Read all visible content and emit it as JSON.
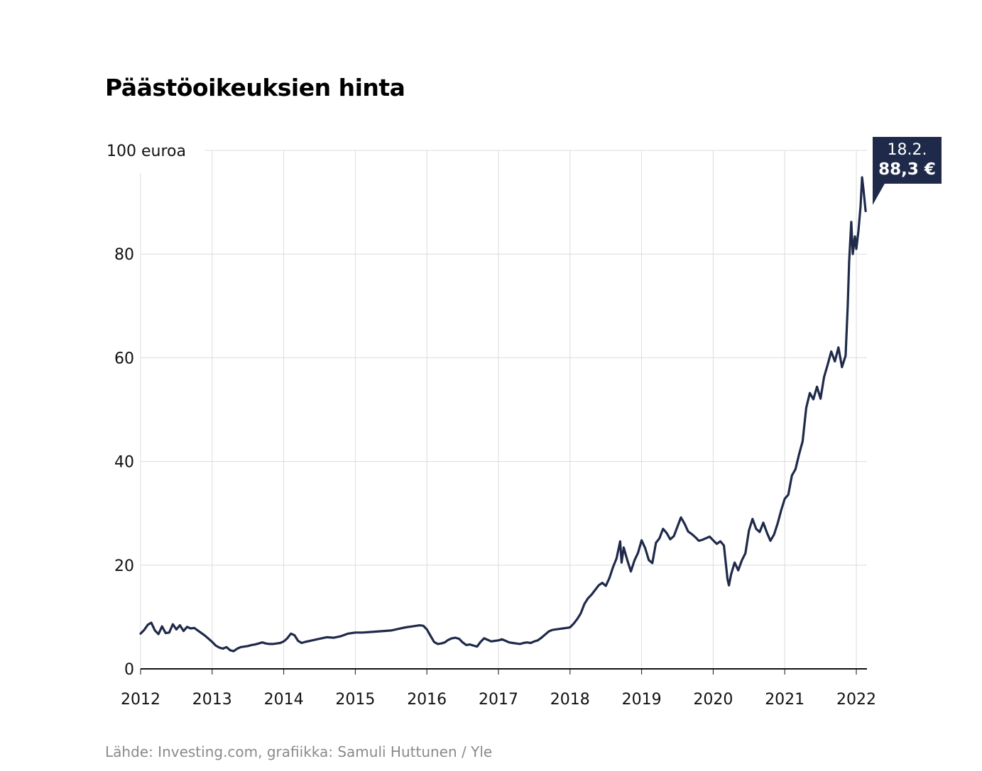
{
  "title": "Päästöoikeuksien hinta",
  "source": "Lähde: Investing.com, grafiikka: Samuli Huttunen / Yle",
  "colors": {
    "line": "#1f2a4a",
    "grid": "#dcdcdc",
    "axis": "#111111"
  },
  "callout": {
    "date": "18.2.",
    "value": "88,3 €"
  },
  "chart_data": {
    "type": "line",
    "title": "Päästöoikeuksien hinta",
    "ylabel": "100 euroa",
    "ylim": [
      0,
      100
    ],
    "xlim": [
      2012,
      2022.2
    ],
    "yticks": [
      {
        "v": 0,
        "label": "0"
      },
      {
        "v": 20,
        "label": "20"
      },
      {
        "v": 40,
        "label": "40"
      },
      {
        "v": 60,
        "label": "60"
      },
      {
        "v": 80,
        "label": "80"
      },
      {
        "v": 100,
        "label": "100 euroa"
      }
    ],
    "xticks": [
      "2012",
      "2013",
      "2014",
      "2015",
      "2016",
      "2017",
      "2018",
      "2019",
      "2020",
      "2021",
      "2022"
    ],
    "grid": true,
    "series": [
      {
        "values": [
          [
            2012.0,
            6.8
          ],
          [
            2012.05,
            7.5
          ],
          [
            2012.1,
            8.5
          ],
          [
            2012.15,
            8.9
          ],
          [
            2012.2,
            7.4
          ],
          [
            2012.25,
            6.7
          ],
          [
            2012.3,
            8.2
          ],
          [
            2012.35,
            6.9
          ],
          [
            2012.4,
            7.0
          ],
          [
            2012.45,
            8.6
          ],
          [
            2012.5,
            7.6
          ],
          [
            2012.55,
            8.4
          ],
          [
            2012.6,
            7.3
          ],
          [
            2012.65,
            8.1
          ],
          [
            2012.7,
            7.8
          ],
          [
            2012.75,
            7.9
          ],
          [
            2012.8,
            7.4
          ],
          [
            2012.85,
            6.9
          ],
          [
            2012.9,
            6.4
          ],
          [
            2012.95,
            5.8
          ],
          [
            2013.0,
            5.2
          ],
          [
            2013.05,
            4.5
          ],
          [
            2013.1,
            4.1
          ],
          [
            2013.15,
            3.9
          ],
          [
            2013.2,
            4.2
          ],
          [
            2013.25,
            3.6
          ],
          [
            2013.3,
            3.4
          ],
          [
            2013.35,
            3.9
          ],
          [
            2013.4,
            4.2
          ],
          [
            2013.45,
            4.3
          ],
          [
            2013.5,
            4.4
          ],
          [
            2013.55,
            4.6
          ],
          [
            2013.6,
            4.7
          ],
          [
            2013.65,
            4.9
          ],
          [
            2013.7,
            5.1
          ],
          [
            2013.75,
            4.9
          ],
          [
            2013.8,
            4.8
          ],
          [
            2013.85,
            4.8
          ],
          [
            2013.9,
            4.9
          ],
          [
            2013.95,
            5.0
          ],
          [
            2014.0,
            5.3
          ],
          [
            2014.05,
            5.9
          ],
          [
            2014.1,
            6.8
          ],
          [
            2014.15,
            6.5
          ],
          [
            2014.2,
            5.4
          ],
          [
            2014.25,
            5.0
          ],
          [
            2014.3,
            5.2
          ],
          [
            2014.4,
            5.5
          ],
          [
            2014.5,
            5.8
          ],
          [
            2014.6,
            6.1
          ],
          [
            2014.7,
            6.0
          ],
          [
            2014.8,
            6.3
          ],
          [
            2014.9,
            6.8
          ],
          [
            2015.0,
            7.0
          ],
          [
            2015.1,
            7.0
          ],
          [
            2015.2,
            7.1
          ],
          [
            2015.3,
            7.2
          ],
          [
            2015.4,
            7.3
          ],
          [
            2015.5,
            7.4
          ],
          [
            2015.6,
            7.7
          ],
          [
            2015.7,
            8.0
          ],
          [
            2015.8,
            8.2
          ],
          [
            2015.9,
            8.4
          ],
          [
            2015.95,
            8.3
          ],
          [
            2016.0,
            7.6
          ],
          [
            2016.05,
            6.4
          ],
          [
            2016.1,
            5.2
          ],
          [
            2016.15,
            4.8
          ],
          [
            2016.2,
            4.9
          ],
          [
            2016.25,
            5.1
          ],
          [
            2016.3,
            5.6
          ],
          [
            2016.35,
            5.9
          ],
          [
            2016.4,
            6.0
          ],
          [
            2016.45,
            5.8
          ],
          [
            2016.5,
            5.1
          ],
          [
            2016.55,
            4.6
          ],
          [
            2016.6,
            4.7
          ],
          [
            2016.65,
            4.5
          ],
          [
            2016.7,
            4.3
          ],
          [
            2016.75,
            5.2
          ],
          [
            2016.8,
            5.9
          ],
          [
            2016.85,
            5.6
          ],
          [
            2016.9,
            5.3
          ],
          [
            2016.95,
            5.4
          ],
          [
            2017.0,
            5.5
          ],
          [
            2017.05,
            5.7
          ],
          [
            2017.1,
            5.4
          ],
          [
            2017.15,
            5.1
          ],
          [
            2017.2,
            5.0
          ],
          [
            2017.25,
            4.9
          ],
          [
            2017.3,
            4.8
          ],
          [
            2017.35,
            5.0
          ],
          [
            2017.4,
            5.1
          ],
          [
            2017.45,
            5.0
          ],
          [
            2017.5,
            5.3
          ],
          [
            2017.55,
            5.5
          ],
          [
            2017.6,
            6.0
          ],
          [
            2017.65,
            6.6
          ],
          [
            2017.7,
            7.2
          ],
          [
            2017.75,
            7.5
          ],
          [
            2017.8,
            7.6
          ],
          [
            2017.85,
            7.7
          ],
          [
            2017.9,
            7.8
          ],
          [
            2017.95,
            7.9
          ],
          [
            2018.0,
            8.0
          ],
          [
            2018.05,
            8.7
          ],
          [
            2018.1,
            9.6
          ],
          [
            2018.15,
            10.7
          ],
          [
            2018.2,
            12.5
          ],
          [
            2018.25,
            13.6
          ],
          [
            2018.3,
            14.3
          ],
          [
            2018.35,
            15.2
          ],
          [
            2018.4,
            16.1
          ],
          [
            2018.45,
            16.6
          ],
          [
            2018.5,
            16.0
          ],
          [
            2018.55,
            17.5
          ],
          [
            2018.6,
            19.6
          ],
          [
            2018.65,
            21.3
          ],
          [
            2018.7,
            24.6
          ],
          [
            2018.72,
            20.5
          ],
          [
            2018.75,
            23.4
          ],
          [
            2018.8,
            21.0
          ],
          [
            2018.85,
            18.8
          ],
          [
            2018.9,
            20.9
          ],
          [
            2018.95,
            22.4
          ],
          [
            2019.0,
            24.8
          ],
          [
            2019.05,
            23.3
          ],
          [
            2019.1,
            21.0
          ],
          [
            2019.15,
            20.4
          ],
          [
            2019.2,
            24.3
          ],
          [
            2019.25,
            25.2
          ],
          [
            2019.3,
            27.0
          ],
          [
            2019.35,
            26.2
          ],
          [
            2019.4,
            25.0
          ],
          [
            2019.45,
            25.6
          ],
          [
            2019.5,
            27.4
          ],
          [
            2019.55,
            29.2
          ],
          [
            2019.6,
            28.0
          ],
          [
            2019.65,
            26.5
          ],
          [
            2019.7,
            26.0
          ],
          [
            2019.75,
            25.4
          ],
          [
            2019.8,
            24.7
          ],
          [
            2019.85,
            24.9
          ],
          [
            2019.9,
            25.2
          ],
          [
            2019.95,
            25.5
          ],
          [
            2020.0,
            24.8
          ],
          [
            2020.05,
            24.1
          ],
          [
            2020.1,
            24.6
          ],
          [
            2020.15,
            23.8
          ],
          [
            2020.2,
            17.3
          ],
          [
            2020.22,
            16.1
          ],
          [
            2020.25,
            18.2
          ],
          [
            2020.3,
            20.5
          ],
          [
            2020.35,
            19.0
          ],
          [
            2020.4,
            20.9
          ],
          [
            2020.45,
            22.3
          ],
          [
            2020.5,
            26.7
          ],
          [
            2020.55,
            28.9
          ],
          [
            2020.6,
            27.0
          ],
          [
            2020.65,
            26.4
          ],
          [
            2020.7,
            28.2
          ],
          [
            2020.75,
            26.3
          ],
          [
            2020.8,
            24.7
          ],
          [
            2020.85,
            25.9
          ],
          [
            2020.9,
            28.0
          ],
          [
            2020.95,
            30.6
          ],
          [
            2021.0,
            32.8
          ],
          [
            2021.05,
            33.6
          ],
          [
            2021.1,
            37.3
          ],
          [
            2021.15,
            38.5
          ],
          [
            2021.2,
            41.4
          ],
          [
            2021.25,
            43.9
          ],
          [
            2021.3,
            50.3
          ],
          [
            2021.35,
            53.2
          ],
          [
            2021.4,
            52.0
          ],
          [
            2021.45,
            54.4
          ],
          [
            2021.5,
            52.1
          ],
          [
            2021.55,
            56.3
          ],
          [
            2021.6,
            58.7
          ],
          [
            2021.65,
            61.2
          ],
          [
            2021.7,
            59.3
          ],
          [
            2021.75,
            62.0
          ],
          [
            2021.8,
            58.2
          ],
          [
            2021.85,
            60.4
          ],
          [
            2021.88,
            70.0
          ],
          [
            2021.9,
            78.6
          ],
          [
            2021.93,
            86.2
          ],
          [
            2021.95,
            80.0
          ],
          [
            2021.98,
            83.4
          ],
          [
            2022.0,
            81.0
          ],
          [
            2022.03,
            84.5
          ],
          [
            2022.06,
            89.3
          ],
          [
            2022.08,
            94.8
          ],
          [
            2022.1,
            92.4
          ],
          [
            2022.13,
            88.3
          ]
        ]
      }
    ]
  }
}
